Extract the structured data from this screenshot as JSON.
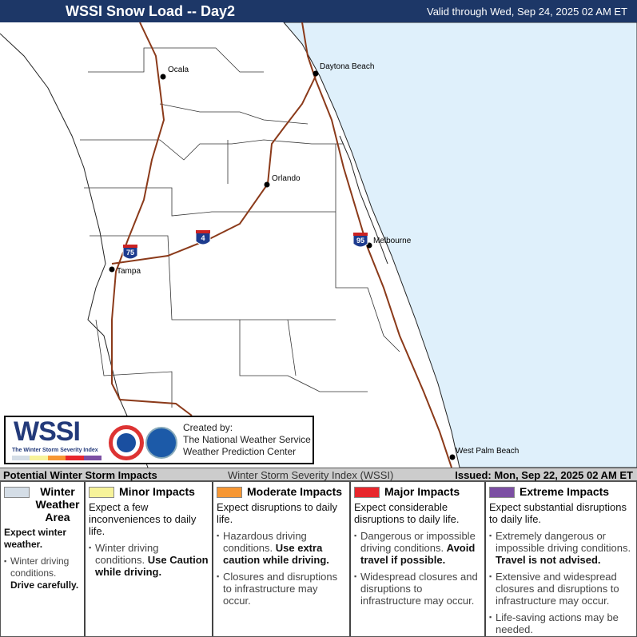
{
  "header": {
    "title": "WSSI Snow Load -- Day2",
    "valid": "Valid through Wed, Sep 24, 2025 02 AM ET"
  },
  "map": {
    "ocean_color": "#dff0fb",
    "road_color": "#8b3a1a",
    "cities": [
      {
        "name": "Ocala"
      },
      {
        "name": "Daytona Beach"
      },
      {
        "name": "Orlando"
      },
      {
        "name": "Tampa"
      },
      {
        "name": "Melbourne"
      },
      {
        "name": "West Palm Beach"
      }
    ],
    "shields": [
      {
        "label": "75"
      },
      {
        "label": "4"
      },
      {
        "label": "95"
      }
    ]
  },
  "logo": {
    "wordmark": "WSSI",
    "subtitle": "The Winter Storm Severity Index",
    "agency_logos": [
      "National Weather Service",
      "NOAA"
    ],
    "credit": [
      "Created by:",
      "The National Weather Service",
      "Weather Prediction Center"
    ]
  },
  "bottom_bar": {
    "left": "Potential Winter Storm Impacts",
    "middle": "Winter Storm Severity Index (WSSI)",
    "right": "Issued: Mon, Sep 22, 2025 02 AM ET"
  },
  "legend": [
    {
      "title": "Winter Weather Area",
      "color": "#d4dde6",
      "expect": "Expect winter weather.",
      "bullets": [
        {
          "plain": "Winter driving conditions. ",
          "bold": "Drive carefully."
        }
      ]
    },
    {
      "title": "Minor Impacts",
      "color": "#f7f39a",
      "expect": "Expect a few inconveniences to daily life.",
      "bullets": [
        {
          "plain": "Winter driving conditions. ",
          "bold": "Use Caution while driving."
        }
      ]
    },
    {
      "title": "Moderate Impacts",
      "color": "#f79733",
      "expect": "Expect disruptions to daily life.",
      "bullets": [
        {
          "plain": "Hazardous driving conditions. ",
          "bold": "Use extra caution while driving."
        },
        {
          "plain": "Closures and disruptions to infrastructure may occur.",
          "bold": ""
        }
      ]
    },
    {
      "title": "Major Impacts",
      "color": "#e8262c",
      "expect": "Expect considerable disruptions to daily life.",
      "bullets": [
        {
          "plain": "Dangerous or impossible driving conditions. ",
          "bold": "Avoid travel if possible."
        },
        {
          "plain": "Widespread closures and disruptions to infrastructure may occur.",
          "bold": ""
        }
      ]
    },
    {
      "title": "Extreme Impacts",
      "color": "#7c4fa3",
      "expect": "Expect substantial disruptions to daily life.",
      "bullets": [
        {
          "plain": "Extremely dangerous or impossible driving conditions. ",
          "bold": "Travel is not advised."
        },
        {
          "plain": "Extensive and widespread closures and disruptions to infrastructure may occur.",
          "bold": ""
        },
        {
          "plain": "Life-saving actions may be needed.",
          "bold": ""
        }
      ]
    }
  ]
}
